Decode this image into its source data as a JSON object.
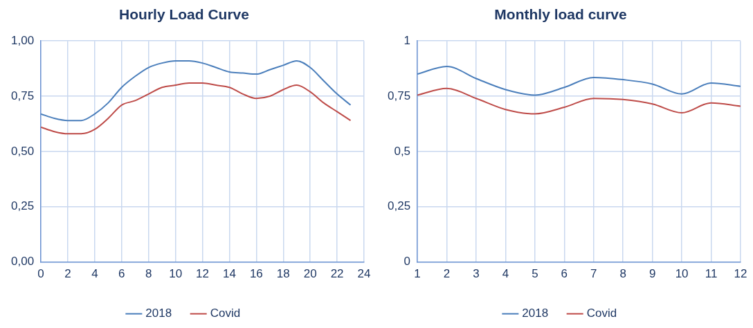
{
  "chart_data": [
    {
      "type": "line",
      "title": "Hourly Load Curve",
      "x": [
        0,
        1,
        2,
        3,
        4,
        5,
        6,
        7,
        8,
        9,
        10,
        11,
        12,
        13,
        14,
        15,
        16,
        17,
        18,
        19,
        20,
        21,
        22,
        23
      ],
      "series": [
        {
          "name": "2018",
          "color": "#4a7ebb",
          "values": [
            0.67,
            0.65,
            0.64,
            0.64,
            0.67,
            0.72,
            0.79,
            0.84,
            0.88,
            0.9,
            0.91,
            0.91,
            0.9,
            0.88,
            0.86,
            0.855,
            0.85,
            0.87,
            0.89,
            0.91,
            0.88,
            0.82,
            0.76,
            0.71
          ]
        },
        {
          "name": "Covid",
          "color": "#be4b48",
          "values": [
            0.61,
            0.59,
            0.58,
            0.58,
            0.6,
            0.65,
            0.71,
            0.73,
            0.76,
            0.79,
            0.8,
            0.81,
            0.81,
            0.8,
            0.79,
            0.76,
            0.74,
            0.75,
            0.78,
            0.8,
            0.77,
            0.72,
            0.68,
            0.64
          ]
        }
      ],
      "xlim": [
        0,
        24
      ],
      "xticks": [
        0,
        2,
        4,
        6,
        8,
        10,
        12,
        14,
        16,
        18,
        20,
        22,
        24
      ],
      "ylim": [
        0,
        1
      ],
      "yticks": [
        {
          "value": 0,
          "label": "0,00"
        },
        {
          "value": 0.25,
          "label": "0,25"
        },
        {
          "value": 0.5,
          "label": "0,50"
        },
        {
          "value": 0.75,
          "label": "0,75"
        },
        {
          "value": 1,
          "label": "1,00"
        }
      ],
      "grid": true,
      "legend": "bottom",
      "marker": "none",
      "line_style": "solid"
    },
    {
      "type": "line",
      "title": "Monthly load curve",
      "x": [
        1,
        2,
        3,
        4,
        5,
        6,
        7,
        8,
        9,
        10,
        11,
        12
      ],
      "series": [
        {
          "name": "2018",
          "color": "#4a7ebb",
          "values": [
            0.85,
            0.885,
            0.83,
            0.78,
            0.755,
            0.79,
            0.835,
            0.825,
            0.805,
            0.76,
            0.81,
            0.795
          ]
        },
        {
          "name": "Covid",
          "color": "#be4b48",
          "values": [
            0.755,
            0.785,
            0.74,
            0.69,
            0.67,
            0.7,
            0.74,
            0.735,
            0.715,
            0.675,
            0.72,
            0.705
          ]
        }
      ],
      "xlim": [
        1,
        12
      ],
      "xticks": [
        1,
        2,
        3,
        4,
        5,
        6,
        7,
        8,
        9,
        10,
        11,
        12
      ],
      "ylim": [
        0,
        1
      ],
      "yticks": [
        0,
        {
          "value": 0.25,
          "label": "0,25"
        },
        {
          "value": 0.5,
          "label": "0,5"
        },
        {
          "value": 0.75,
          "label": "0,75"
        },
        1
      ],
      "grid": true,
      "legend": "bottom",
      "marker": "none",
      "line_style": "solid"
    }
  ]
}
